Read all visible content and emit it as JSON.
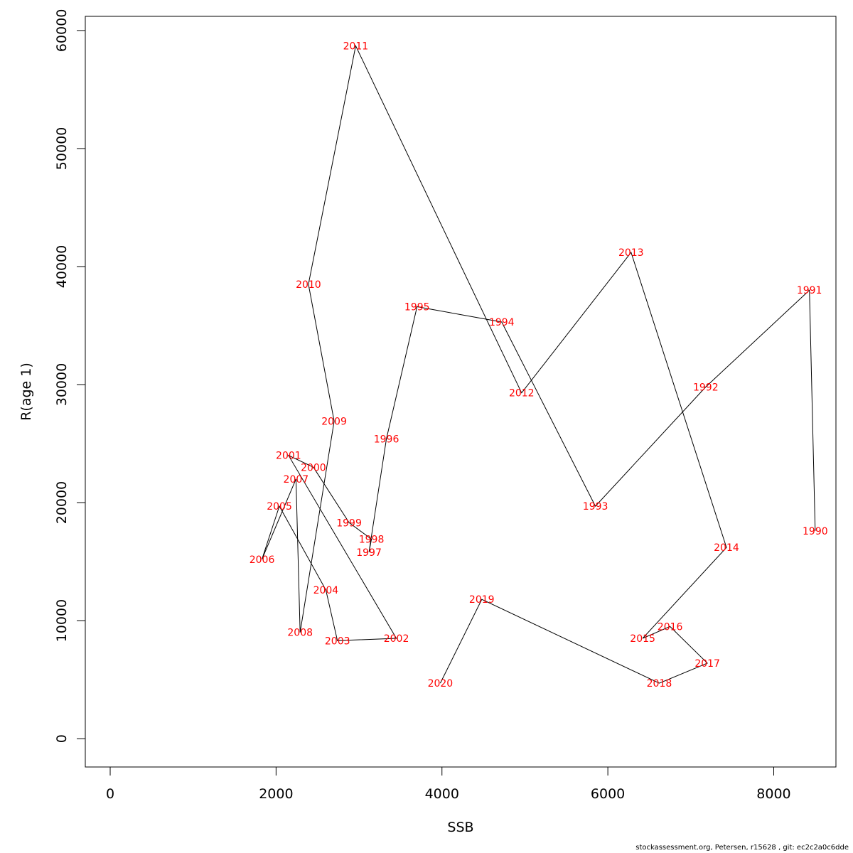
{
  "chart_data": {
    "type": "line",
    "xlabel": "SSB",
    "ylabel": "R(age 1)",
    "xlim": [
      -300,
      8750
    ],
    "ylim": [
      -2400,
      61200
    ],
    "x_ticks": [
      0,
      2000,
      4000,
      6000,
      8000
    ],
    "y_ticks": [
      0,
      10000,
      20000,
      30000,
      40000,
      50000,
      60000
    ],
    "grid": false,
    "line_color": "#000000",
    "label_color": "#ff0000",
    "points": [
      {
        "label": "1990",
        "x": 8500,
        "y": 17600
      },
      {
        "label": "1991",
        "x": 8430,
        "y": 38000
      },
      {
        "label": "1992",
        "x": 7180,
        "y": 29800
      },
      {
        "label": "1993",
        "x": 5850,
        "y": 19700
      },
      {
        "label": "1994",
        "x": 4720,
        "y": 35300
      },
      {
        "label": "1995",
        "x": 3700,
        "y": 36600
      },
      {
        "label": "1996",
        "x": 3330,
        "y": 25400
      },
      {
        "label": "1997",
        "x": 3120,
        "y": 15800
      },
      {
        "label": "1998",
        "x": 3150,
        "y": 16900
      },
      {
        "label": "1999",
        "x": 2880,
        "y": 18300
      },
      {
        "label": "2000",
        "x": 2450,
        "y": 23000
      },
      {
        "label": "2001",
        "x": 2150,
        "y": 24000
      },
      {
        "label": "2002",
        "x": 3450,
        "y": 8500
      },
      {
        "label": "2003",
        "x": 2740,
        "y": 8300
      },
      {
        "label": "2004",
        "x": 2600,
        "y": 12600
      },
      {
        "label": "2005",
        "x": 2040,
        "y": 19700
      },
      {
        "label": "2006",
        "x": 1830,
        "y": 15200
      },
      {
        "label": "2007",
        "x": 2240,
        "y": 22000
      },
      {
        "label": "2008",
        "x": 2290,
        "y": 9000
      },
      {
        "label": "2009",
        "x": 2700,
        "y": 26900
      },
      {
        "label": "2010",
        "x": 2390,
        "y": 38500
      },
      {
        "label": "2011",
        "x": 2960,
        "y": 58700
      },
      {
        "label": "2012",
        "x": 4960,
        "y": 29300
      },
      {
        "label": "2013",
        "x": 6280,
        "y": 41200
      },
      {
        "label": "2014",
        "x": 7430,
        "y": 16200
      },
      {
        "label": "2015",
        "x": 6420,
        "y": 8500
      },
      {
        "label": "2016",
        "x": 6750,
        "y": 9500
      },
      {
        "label": "2017",
        "x": 7200,
        "y": 6400
      },
      {
        "label": "2018",
        "x": 6620,
        "y": 4700
      },
      {
        "label": "2019",
        "x": 4480,
        "y": 11800
      },
      {
        "label": "2020",
        "x": 3980,
        "y": 4700
      }
    ]
  },
  "footer": {
    "credit": "stockassessment.org, Petersen, r15628 , git: ec2c2a0c6dde"
  }
}
